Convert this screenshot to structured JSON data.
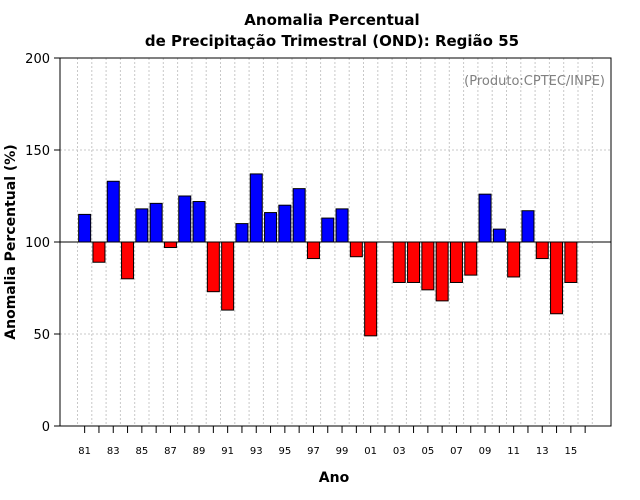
{
  "chart_data": {
    "type": "bar",
    "title": [
      "Anomalia Percentual",
      "de Precipitação Trimestral (OND): Região 55"
    ],
    "xlabel": "Ano",
    "ylabel": "Anomalia Percentual (%)",
    "credit": "(Produto:CPTEC/INPE)",
    "baseline": 100,
    "ylim": [
      0,
      200
    ],
    "yticks": [
      0,
      50,
      100,
      150,
      200
    ],
    "grid": true,
    "colors": {
      "above": "#0000ff",
      "below": "#ff0000"
    },
    "categories": [
      "81",
      "82",
      "83",
      "84",
      "85",
      "86",
      "87",
      "88",
      "89",
      "90",
      "91",
      "92",
      "93",
      "94",
      "95",
      "96",
      "97",
      "98",
      "99",
      "00",
      "01",
      "02",
      "03",
      "04",
      "05",
      "06",
      "07",
      "08",
      "09",
      "10",
      "11",
      "12",
      "13",
      "14",
      "15",
      "16"
    ],
    "values": [
      115,
      89,
      133,
      80,
      118,
      121,
      97,
      125,
      122,
      73,
      63,
      110,
      137,
      116,
      120,
      129,
      91,
      113,
      118,
      92,
      49,
      null,
      78,
      78,
      74,
      68,
      78,
      82,
      126,
      107,
      81,
      117,
      91,
      61,
      78,
      null
    ],
    "xtick_labels": [
      "81",
      "83",
      "85",
      "87",
      "89",
      "91",
      "93",
      "95",
      "97",
      "99",
      "01",
      "03",
      "05",
      "07",
      "09",
      "11",
      "13",
      "15"
    ]
  }
}
